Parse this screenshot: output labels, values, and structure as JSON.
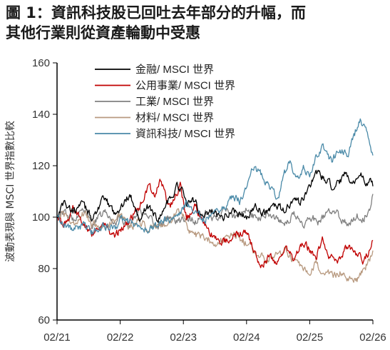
{
  "title": "圖 1：資訊科技股已回吐去年部分的升幅，而\n其他行業則從資產輪動中受惠",
  "chart_data": {
    "type": "line",
    "ylabel": "波動表現與 MSCI 世界指數比較",
    "ylim": [
      60,
      160
    ],
    "yticks": [
      "60",
      "80",
      "100",
      "120",
      "140",
      "160"
    ],
    "xlim": [
      "02/21",
      "02/26"
    ],
    "xticks": [
      "02/21",
      "02/22",
      "02/23",
      "02/24",
      "02/25",
      "02/26"
    ],
    "legend_position": "top-center",
    "series": [
      {
        "name": "金融/ MSCI 世界",
        "color": "#000000",
        "points": [
          [
            0,
            100
          ],
          [
            0.1,
            106
          ],
          [
            0.25,
            102
          ],
          [
            0.4,
            105
          ],
          [
            0.55,
            100
          ],
          [
            0.75,
            107
          ],
          [
            0.9,
            102
          ],
          [
            1.0,
            103
          ],
          [
            1.15,
            109
          ],
          [
            1.3,
            100
          ],
          [
            1.45,
            104
          ],
          [
            1.6,
            99
          ],
          [
            1.75,
            106
          ],
          [
            1.9,
            112
          ],
          [
            2.0,
            110
          ],
          [
            2.05,
            104
          ],
          [
            2.15,
            108
          ],
          [
            2.3,
            100
          ],
          [
            2.45,
            103
          ],
          [
            2.6,
            99
          ],
          [
            2.75,
            103
          ],
          [
            2.9,
            101
          ],
          [
            3.0,
            100
          ],
          [
            3.15,
            104
          ],
          [
            3.3,
            101
          ],
          [
            3.45,
            105
          ],
          [
            3.6,
            102
          ],
          [
            3.75,
            107
          ],
          [
            3.85,
            105
          ],
          [
            4.0,
            112
          ],
          [
            4.1,
            118
          ],
          [
            4.25,
            114
          ],
          [
            4.4,
            111
          ],
          [
            4.55,
            116
          ],
          [
            4.7,
            113
          ],
          [
            4.8,
            117
          ],
          [
            4.9,
            113
          ],
          [
            4.95,
            115
          ],
          [
            5.0,
            112
          ]
        ]
      },
      {
        "name": "公用事業/ MSCI 世界",
        "color": "#c00000",
        "points": [
          [
            0,
            100
          ],
          [
            0.1,
            96
          ],
          [
            0.25,
            103
          ],
          [
            0.4,
            99
          ],
          [
            0.55,
            94
          ],
          [
            0.75,
            97
          ],
          [
            0.9,
            92
          ],
          [
            1.0,
            95
          ],
          [
            1.15,
            99
          ],
          [
            1.3,
            104
          ],
          [
            1.45,
            112
          ],
          [
            1.55,
            109
          ],
          [
            1.65,
            115
          ],
          [
            1.75,
            104
          ],
          [
            1.85,
            106
          ],
          [
            1.95,
            113
          ],
          [
            2.0,
            106
          ],
          [
            2.05,
            100
          ],
          [
            2.2,
            104
          ],
          [
            2.35,
            96
          ],
          [
            2.5,
            92
          ],
          [
            2.65,
            90
          ],
          [
            2.8,
            93
          ],
          [
            3.0,
            94
          ],
          [
            3.1,
            88
          ],
          [
            3.2,
            81
          ],
          [
            3.35,
            84
          ],
          [
            3.5,
            83
          ],
          [
            3.6,
            88
          ],
          [
            3.75,
            84
          ],
          [
            3.9,
            90
          ],
          [
            4.0,
            87
          ],
          [
            4.1,
            84
          ],
          [
            4.2,
            92
          ],
          [
            4.3,
            85
          ],
          [
            4.45,
            83
          ],
          [
            4.6,
            89
          ],
          [
            4.75,
            86
          ],
          [
            4.85,
            83
          ],
          [
            4.95,
            87
          ],
          [
            5.0,
            91
          ]
        ]
      },
      {
        "name": "工業/ MSCI 世界",
        "color": "#808080",
        "points": [
          [
            0,
            100
          ],
          [
            0.1,
            102
          ],
          [
            0.25,
            99
          ],
          [
            0.4,
            104
          ],
          [
            0.55,
            97
          ],
          [
            0.75,
            102
          ],
          [
            0.9,
            98
          ],
          [
            1.0,
            100
          ],
          [
            1.15,
            97
          ],
          [
            1.3,
            103
          ],
          [
            1.45,
            99
          ],
          [
            1.6,
            96
          ],
          [
            1.75,
            100
          ],
          [
            1.9,
            98
          ],
          [
            2.0,
            99
          ],
          [
            2.05,
            100
          ],
          [
            2.2,
            98
          ],
          [
            2.35,
            101
          ],
          [
            2.5,
            99
          ],
          [
            2.65,
            103
          ],
          [
            2.8,
            100
          ],
          [
            3.0,
            103
          ],
          [
            3.15,
            99
          ],
          [
            3.3,
            102
          ],
          [
            3.45,
            100
          ],
          [
            3.6,
            98
          ],
          [
            3.75,
            101
          ],
          [
            3.9,
            97
          ],
          [
            4.0,
            100
          ],
          [
            4.15,
            98
          ],
          [
            4.3,
            102
          ],
          [
            4.45,
            101
          ],
          [
            4.6,
            97
          ],
          [
            4.75,
            101
          ],
          [
            4.85,
            99
          ],
          [
            4.95,
            104
          ],
          [
            5.0,
            109
          ]
        ]
      },
      {
        "name": "材料/ MSCI 世界",
        "color": "#b89a80",
        "points": [
          [
            0,
            100
          ],
          [
            0.1,
            102
          ],
          [
            0.25,
            97
          ],
          [
            0.4,
            101
          ],
          [
            0.55,
            98
          ],
          [
            0.75,
            96
          ],
          [
            0.9,
            99
          ],
          [
            1.0,
            101
          ],
          [
            1.15,
            96
          ],
          [
            1.3,
            99
          ],
          [
            1.45,
            95
          ],
          [
            1.6,
            98
          ],
          [
            1.75,
            96
          ],
          [
            1.9,
            103
          ],
          [
            2.0,
            101
          ],
          [
            2.05,
            96
          ],
          [
            2.2,
            93
          ],
          [
            2.35,
            92
          ],
          [
            2.5,
            90
          ],
          [
            2.65,
            91
          ],
          [
            2.8,
            93
          ],
          [
            3.0,
            90
          ],
          [
            3.15,
            86
          ],
          [
            3.3,
            84
          ],
          [
            3.45,
            85
          ],
          [
            3.6,
            87
          ],
          [
            3.75,
            83
          ],
          [
            3.9,
            79
          ],
          [
            4.0,
            77
          ],
          [
            4.1,
            82
          ],
          [
            4.2,
            79
          ],
          [
            4.35,
            77
          ],
          [
            4.5,
            79
          ],
          [
            4.6,
            75
          ],
          [
            4.75,
            76
          ],
          [
            4.85,
            80
          ],
          [
            4.95,
            83
          ],
          [
            5.0,
            87
          ]
        ]
      },
      {
        "name": "資訊科技/ MSCI 世界",
        "color": "#4a8aa8",
        "points": [
          [
            0,
            100
          ],
          [
            0.1,
            98
          ],
          [
            0.25,
            95
          ],
          [
            0.4,
            97
          ],
          [
            0.55,
            94
          ],
          [
            0.75,
            97
          ],
          [
            0.9,
            95
          ],
          [
            1.0,
            99
          ],
          [
            1.15,
            98
          ],
          [
            1.3,
            96
          ],
          [
            1.45,
            95
          ],
          [
            1.6,
            97
          ],
          [
            1.75,
            100
          ],
          [
            1.9,
            99
          ],
          [
            2.0,
            103
          ],
          [
            2.05,
            106
          ],
          [
            2.2,
            101
          ],
          [
            2.35,
            99
          ],
          [
            2.5,
            103
          ],
          [
            2.65,
            104
          ],
          [
            2.8,
            108
          ],
          [
            2.9,
            106
          ],
          [
            3.0,
            112
          ],
          [
            3.1,
            120
          ],
          [
            3.25,
            116
          ],
          [
            3.4,
            111
          ],
          [
            3.5,
            108
          ],
          [
            3.6,
            117
          ],
          [
            3.7,
            122
          ],
          [
            3.8,
            114
          ],
          [
            3.9,
            119
          ],
          [
            4.0,
            115
          ],
          [
            4.1,
            124
          ],
          [
            4.2,
            127
          ],
          [
            4.35,
            122
          ],
          [
            4.5,
            126
          ],
          [
            4.6,
            124
          ],
          [
            4.7,
            132
          ],
          [
            4.8,
            138
          ],
          [
            4.9,
            133
          ],
          [
            4.95,
            128
          ],
          [
            5.0,
            124
          ]
        ]
      }
    ]
  }
}
